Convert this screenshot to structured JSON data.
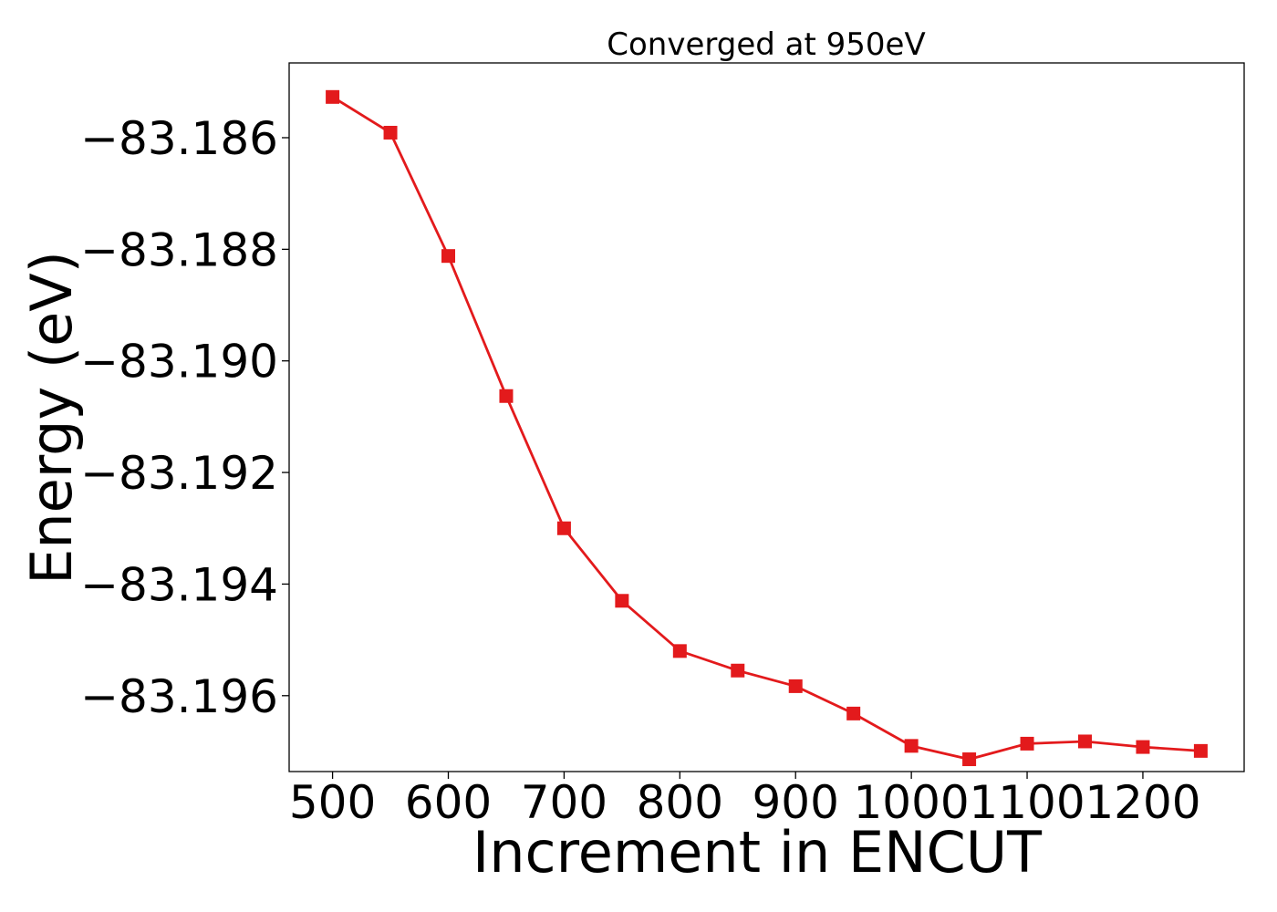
{
  "chart_data": {
    "type": "line",
    "title": "Converged at 950eV",
    "xlabel": "Increment in ENCUT",
    "ylabel": "Energy (eV)",
    "x": [
      500,
      550,
      600,
      650,
      700,
      750,
      800,
      850,
      900,
      950,
      1000,
      1050,
      1100,
      1150,
      1200,
      1250
    ],
    "series": [
      {
        "color": "#e31a1c",
        "marker": "square",
        "values": [
          -83.18527,
          -83.18591,
          -83.18812,
          -83.19063,
          -83.193,
          -83.1943,
          -83.1952,
          -83.19555,
          -83.19583,
          -83.19632,
          -83.1969,
          -83.19714,
          -83.19686,
          -83.19682,
          -83.19692,
          -83.19699
        ]
      }
    ],
    "xticks": [
      500,
      600,
      700,
      800,
      900,
      1000,
      1100,
      1200
    ],
    "xtick_labels": [
      "500",
      "600",
      "700",
      "800",
      "900",
      "1000",
      "1100",
      "1200"
    ],
    "yticks": [
      -83.186,
      -83.188,
      -83.19,
      -83.192,
      -83.194,
      -83.196
    ],
    "ytick_labels": [
      "−83.186",
      "−83.188",
      "−83.190",
      "−83.192",
      "−83.194",
      "−83.196"
    ],
    "xlim": [
      462.5,
      1287.5
    ],
    "ylim": [
      -83.19736,
      -83.18466
    ],
    "grid": false,
    "legend": "none"
  }
}
